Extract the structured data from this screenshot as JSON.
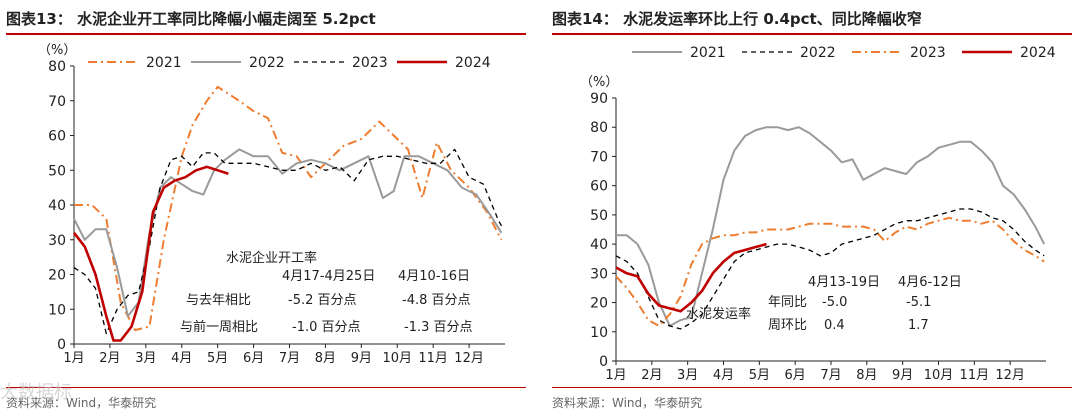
{
  "colors": {
    "s2021": "#9a9a9a",
    "s2022": "#000000",
    "s2023": "#ed7d31",
    "s2024": "#c00000",
    "title_red": "#c00000"
  },
  "watermark": "大数据标",
  "charts": [
    {
      "id": "p1",
      "title": "图表13：  水泥企业开工率同比降幅小幅走阔至 5.2pct",
      "source": "资料来源：Wind，华泰研究",
      "unit_label": "（%）",
      "legend": [
        "2021",
        "2022",
        "2023",
        "2024"
      ],
      "annotation": {
        "title": "水泥企业开工率",
        "col1": "4月17-4月25日",
        "col2": "4月10-16日",
        "row1_label": "与去年相比",
        "row1_v1": "-5.2 百分点",
        "row1_v2": "-4.8 百分点",
        "row2_label": "与前一周相比",
        "row2_v1": "-1.0 百分点",
        "row2_v2": "-1.3 百分点"
      }
    },
    {
      "id": "p2",
      "title": "图表14：  水泥发运率环比上行 0.4pct、同比降幅收窄",
      "source": "资料来源：Wind，华泰研究",
      "unit_label": "（%）",
      "legend": [
        "2021",
        "2022",
        "2023",
        "2024"
      ],
      "series_label": "水泥发运率",
      "annotation": {
        "col1": "4月13-19日",
        "col2": "4月6-12日",
        "row1_label": "年同比",
        "row1_v1": "-5.0",
        "row1_v2": "-5.1",
        "row2_label": "周环比",
        "row2_v1": "0.4",
        "row2_v2": "1.7"
      }
    }
  ],
  "chart_data": [
    {
      "type": "line",
      "title": "水泥企业开工率同比降幅小幅走阔至 5.2pct",
      "xlabel": "",
      "ylabel": "（%）",
      "ylim": [
        0,
        80
      ],
      "yticks": [
        0,
        10,
        20,
        30,
        40,
        50,
        60,
        70,
        80
      ],
      "xlim": [
        0,
        12
      ],
      "categories": [
        "1月",
        "2月",
        "3月",
        "4月",
        "5月",
        "6月",
        "7月",
        "8月",
        "9月",
        "10月",
        "11月",
        "12月"
      ],
      "series": [
        {
          "name": "2021",
          "style": "dashdot",
          "x": [
            0,
            0.5,
            0.9,
            1.3,
            1.7,
            2.1,
            2.5,
            3.0,
            3.3,
            3.7,
            4.0,
            4.3,
            4.6,
            5.0,
            5.4,
            5.8,
            6.2,
            6.6,
            7.0,
            7.5,
            8.0,
            8.5,
            8.9,
            9.3,
            9.7,
            10.1,
            10.5,
            11.0,
            11.5,
            11.9
          ],
          "values": [
            40,
            40,
            36,
            12,
            4,
            5,
            30,
            54,
            63,
            70,
            74,
            72,
            70,
            67,
            65,
            55,
            54,
            48,
            52,
            57,
            59,
            64,
            60,
            56,
            42,
            58,
            50,
            45,
            38,
            30
          ]
        },
        {
          "name": "2022",
          "style": "solid",
          "x": [
            0,
            0.3,
            0.6,
            0.9,
            1.2,
            1.5,
            1.8,
            2.1,
            2.4,
            2.7,
            3.0,
            3.3,
            3.6,
            3.9,
            4.2,
            4.6,
            5.0,
            5.4,
            5.8,
            6.2,
            6.6,
            7.0,
            7.4,
            7.8,
            8.2,
            8.6,
            8.9,
            9.2,
            9.6,
            10.0,
            10.4,
            10.8,
            11.2,
            11.6,
            11.9
          ],
          "values": [
            36,
            30,
            33,
            33,
            22,
            8,
            12,
            32,
            45,
            48,
            46,
            44,
            43,
            50,
            53,
            56,
            54,
            54,
            49,
            52,
            53,
            52,
            50,
            52,
            54,
            42,
            44,
            54,
            54,
            52,
            50,
            45,
            43,
            37,
            32
          ]
        },
        {
          "name": "2023",
          "style": "dashed",
          "x": [
            0,
            0.3,
            0.6,
            0.9,
            1.2,
            1.5,
            1.8,
            2.1,
            2.4,
            2.7,
            3.0,
            3.3,
            3.6,
            3.9,
            4.2,
            4.6,
            5.0,
            5.4,
            5.8,
            6.2,
            6.6,
            7.0,
            7.4,
            7.8,
            8.2,
            8.6,
            9.0,
            9.4,
            9.8,
            10.2,
            10.6,
            11.0,
            11.4,
            11.8,
            11.95
          ],
          "values": [
            22,
            20,
            16,
            3,
            10,
            14,
            15,
            28,
            45,
            53,
            54,
            51,
            55,
            55,
            52,
            52,
            52,
            51,
            50,
            50,
            52,
            50,
            51,
            47,
            53,
            54,
            54,
            53,
            52,
            52,
            56,
            48,
            46,
            36,
            33
          ]
        },
        {
          "name": "2024",
          "style": "solid-bold",
          "x": [
            0,
            0.3,
            0.6,
            0.9,
            1.1,
            1.3,
            1.6,
            1.9,
            2.2,
            2.5,
            2.8,
            3.1,
            3.4,
            3.7,
            4.0,
            4.3
          ],
          "values": [
            32,
            28,
            20,
            8,
            1,
            1,
            5,
            15,
            38,
            45,
            47,
            48,
            50,
            51,
            50,
            49
          ]
        }
      ]
    },
    {
      "type": "line",
      "title": "水泥发运率环比上行 0.4pct、同比降幅收窄",
      "xlabel": "",
      "ylabel": "（%）",
      "ylim": [
        0,
        90
      ],
      "yticks": [
        0,
        10,
        20,
        30,
        40,
        50,
        60,
        70,
        80,
        90
      ],
      "xlim": [
        0,
        12
      ],
      "categories": [
        "1月",
        "2月",
        "3月",
        "4月",
        "5月",
        "6月",
        "7月",
        "8月",
        "9月",
        "10月",
        "11月",
        "12月"
      ],
      "series": [
        {
          "name": "2021",
          "style": "solid",
          "x": [
            0,
            0.3,
            0.6,
            0.9,
            1.2,
            1.5,
            1.8,
            2.1,
            2.4,
            2.7,
            3.0,
            3.3,
            3.6,
            3.9,
            4.2,
            4.5,
            4.8,
            5.1,
            5.4,
            5.7,
            6.0,
            6.3,
            6.6,
            6.9,
            7.2,
            7.5,
            7.8,
            8.1,
            8.4,
            8.7,
            9.0,
            9.3,
            9.6,
            9.9,
            10.2,
            10.5,
            10.8,
            11.1,
            11.4,
            11.7,
            11.95
          ],
          "values": [
            43,
            43,
            40,
            33,
            20,
            12,
            14,
            15,
            30,
            45,
            62,
            72,
            77,
            79,
            80,
            80,
            79,
            80,
            78,
            75,
            72,
            68,
            69,
            62,
            64,
            66,
            65,
            64,
            68,
            70,
            73,
            74,
            75,
            75,
            72,
            68,
            60,
            57,
            52,
            46,
            40
          ]
        },
        {
          "name": "2022",
          "style": "dashed",
          "x": [
            0,
            0.3,
            0.6,
            0.9,
            1.2,
            1.5,
            1.8,
            2.1,
            2.4,
            2.7,
            3.0,
            3.3,
            3.6,
            3.9,
            4.2,
            4.5,
            4.8,
            5.1,
            5.4,
            5.7,
            6.0,
            6.3,
            6.6,
            6.9,
            7.2,
            7.5,
            7.8,
            8.1,
            8.4,
            8.7,
            9.0,
            9.3,
            9.6,
            9.9,
            10.2,
            10.5,
            10.8,
            11.1,
            11.4,
            11.7,
            11.95
          ],
          "values": [
            36,
            34,
            30,
            22,
            14,
            12,
            11,
            13,
            16,
            22,
            28,
            34,
            37,
            38,
            39,
            40,
            40,
            39,
            38,
            36,
            37,
            40,
            41,
            42,
            43,
            45,
            47,
            48,
            48,
            49,
            50,
            51,
            52,
            52,
            51,
            49,
            48,
            45,
            41,
            38,
            36
          ]
        },
        {
          "name": "2023",
          "style": "dashdot",
          "x": [
            0,
            0.3,
            0.6,
            0.9,
            1.2,
            1.5,
            1.8,
            2.1,
            2.4,
            2.7,
            3.0,
            3.3,
            3.6,
            3.9,
            4.2,
            4.5,
            4.8,
            5.1,
            5.4,
            5.7,
            6.0,
            6.3,
            6.6,
            6.9,
            7.2,
            7.5,
            7.8,
            8.1,
            8.4,
            8.7,
            9.0,
            9.3,
            9.6,
            9.9,
            10.2,
            10.5,
            10.8,
            11.1,
            11.4,
            11.7,
            11.95
          ],
          "values": [
            29,
            25,
            20,
            14,
            12,
            16,
            22,
            33,
            40,
            42,
            43,
            43,
            44,
            44,
            45,
            45,
            45,
            46,
            47,
            47,
            47,
            46,
            46,
            46,
            45,
            41,
            44,
            46,
            45,
            47,
            48,
            49,
            48,
            48,
            47,
            48,
            45,
            41,
            38,
            36,
            34
          ]
        },
        {
          "name": "2024",
          "style": "solid-bold",
          "x": [
            0,
            0.3,
            0.6,
            0.9,
            1.2,
            1.5,
            1.8,
            2.1,
            2.4,
            2.7,
            3.0,
            3.3,
            3.6,
            3.9,
            4.2
          ],
          "values": [
            32,
            30,
            29,
            23,
            19,
            18,
            17,
            20,
            24,
            30,
            34,
            37,
            38,
            39,
            40
          ]
        }
      ]
    }
  ]
}
